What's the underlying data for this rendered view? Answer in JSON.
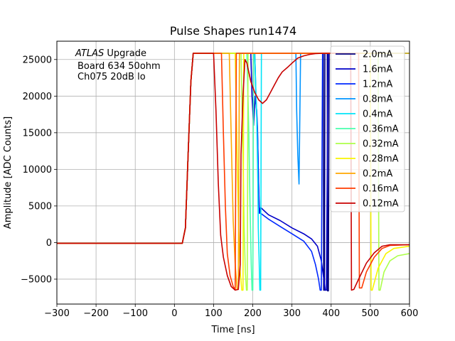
{
  "chart_data": {
    "type": "line",
    "title": "Pulse Shapes run1474",
    "xlabel": "Time [ns]",
    "ylabel": "Amplitude [ADC Counts]",
    "xlim": [
      -300,
      600
    ],
    "ylim": [
      -8400,
      27500
    ],
    "xticks": [
      -300,
      -200,
      -100,
      0,
      100,
      200,
      300,
      400,
      500,
      600
    ],
    "xtick_labels": [
      "−300",
      "−200",
      "−100",
      "0",
      "100",
      "200",
      "300",
      "400",
      "500",
      "600"
    ],
    "yticks": [
      -5000,
      0,
      5000,
      10000,
      15000,
      20000,
      25000
    ],
    "ytick_labels": [
      "−5000",
      "0",
      "5000",
      "10000",
      "15000",
      "20000",
      "25000"
    ],
    "grid": true,
    "legend_position": "top-right",
    "annotation": {
      "experiment": "ATLAS",
      "experiment_suffix": " Upgrade",
      "line2": "Board 634 50ohm",
      "line3": "Ch075 20dB lo"
    },
    "series": [
      {
        "name": "2.0mA",
        "color": "#00007f",
        "values": [
          [
            -300,
            -100
          ],
          [
            20,
            -100
          ],
          [
            28,
            2000
          ],
          [
            35,
            12000
          ],
          [
            42,
            22000
          ],
          [
            48,
            25850
          ],
          [
            380,
            25850
          ],
          [
            381,
            -6500
          ],
          [
            383,
            -6500
          ],
          [
            384,
            25850
          ],
          [
            390,
            25850
          ],
          [
            391,
            -6600
          ],
          [
            393,
            -6600
          ],
          [
            395,
            25850
          ],
          [
            600,
            25850
          ]
        ]
      },
      {
        "name": "1.6mA",
        "color": "#0000c8",
        "values": [
          [
            -300,
            -100
          ],
          [
            20,
            -100
          ],
          [
            28,
            2000
          ],
          [
            35,
            12000
          ],
          [
            42,
            22000
          ],
          [
            48,
            25850
          ],
          [
            195,
            25850
          ],
          [
            198,
            20000
          ],
          [
            202,
            16000
          ],
          [
            206,
            20000
          ],
          [
            210,
            18000
          ],
          [
            212,
            15500
          ],
          [
            214,
            10000
          ],
          [
            216,
            5000
          ],
          [
            218,
            4000
          ],
          [
            220,
            4800
          ],
          [
            240,
            3800
          ],
          [
            270,
            3000
          ],
          [
            300,
            2000
          ],
          [
            330,
            1200
          ],
          [
            350,
            500
          ],
          [
            365,
            -500
          ],
          [
            375,
            -2500
          ],
          [
            380,
            -4500
          ],
          [
            385,
            -6500
          ],
          [
            388,
            -6500
          ],
          [
            392,
            25850
          ],
          [
            600,
            25850
          ]
        ]
      },
      {
        "name": "1.2mA",
        "color": "#0028ff",
        "values": [
          [
            -300,
            -100
          ],
          [
            20,
            -100
          ],
          [
            28,
            2000
          ],
          [
            35,
            12000
          ],
          [
            42,
            22000
          ],
          [
            48,
            25850
          ],
          [
            205,
            25850
          ],
          [
            208,
            20000
          ],
          [
            212,
            15000
          ],
          [
            215,
            8000
          ],
          [
            217,
            4000
          ],
          [
            220,
            4000
          ],
          [
            240,
            3200
          ],
          [
            270,
            2200
          ],
          [
            300,
            1200
          ],
          [
            330,
            200
          ],
          [
            350,
            -1200
          ],
          [
            360,
            -3000
          ],
          [
            368,
            -5000
          ],
          [
            372,
            -6500
          ],
          [
            375,
            -6500
          ],
          [
            378,
            25850
          ],
          [
            600,
            25850
          ]
        ]
      },
      {
        "name": "0.8mA",
        "color": "#0094ff",
        "values": [
          [
            -300,
            -100
          ],
          [
            20,
            -100
          ],
          [
            28,
            2000
          ],
          [
            35,
            12000
          ],
          [
            42,
            22000
          ],
          [
            48,
            25850
          ],
          [
            310,
            25850
          ],
          [
            312,
            18000
          ],
          [
            315,
            12000
          ],
          [
            318,
            8000
          ],
          [
            322,
            25850
          ],
          [
            600,
            25850
          ]
        ]
      },
      {
        "name": "0.4mA",
        "color": "#00e4f8",
        "values": [
          [
            -300,
            -100
          ],
          [
            20,
            -100
          ],
          [
            28,
            2000
          ],
          [
            35,
            12000
          ],
          [
            42,
            22000
          ],
          [
            48,
            25850
          ],
          [
            205,
            25850
          ],
          [
            210,
            17000
          ],
          [
            213,
            8000
          ],
          [
            214,
            2000
          ],
          [
            216,
            -2000
          ],
          [
            218,
            -6500
          ],
          [
            220,
            -6500
          ],
          [
            222,
            25850
          ],
          [
            600,
            25850
          ]
        ]
      },
      {
        "name": "0.36mA",
        "color": "#4affad",
        "values": [
          [
            -300,
            -100
          ],
          [
            20,
            -100
          ],
          [
            28,
            2000
          ],
          [
            35,
            12000
          ],
          [
            42,
            22000
          ],
          [
            48,
            25850
          ],
          [
            185,
            25850
          ],
          [
            190,
            15000
          ],
          [
            193,
            5000
          ],
          [
            196,
            -3000
          ],
          [
            198,
            -6500
          ],
          [
            200,
            -6500
          ],
          [
            202,
            25850
          ],
          [
            600,
            25850
          ]
        ]
      },
      {
        "name": "0.32mA",
        "color": "#adff4a",
        "values": [
          [
            -300,
            -100
          ],
          [
            20,
            -100
          ],
          [
            28,
            2000
          ],
          [
            35,
            12000
          ],
          [
            42,
            22000
          ],
          [
            48,
            25850
          ],
          [
            170,
            25850
          ],
          [
            175,
            12000
          ],
          [
            178,
            2000
          ],
          [
            181,
            -4000
          ],
          [
            184,
            -6500
          ],
          [
            186,
            -6500
          ],
          [
            188,
            25850
          ],
          [
            520,
            25850
          ],
          [
            522,
            -6500
          ],
          [
            525,
            -6500
          ],
          [
            535,
            -4000
          ],
          [
            550,
            -2500
          ],
          [
            570,
            -1800
          ],
          [
            600,
            -1500
          ]
        ]
      },
      {
        "name": "0.28mA",
        "color": "#f8f500",
        "values": [
          [
            -300,
            -100
          ],
          [
            20,
            -100
          ],
          [
            28,
            2000
          ],
          [
            35,
            12000
          ],
          [
            42,
            22000
          ],
          [
            48,
            25850
          ],
          [
            155,
            25850
          ],
          [
            160,
            12000
          ],
          [
            164,
            2000
          ],
          [
            168,
            -4000
          ],
          [
            172,
            -6500
          ],
          [
            175,
            -6500
          ],
          [
            177,
            25850
          ],
          [
            500,
            25850
          ],
          [
            502,
            -6500
          ],
          [
            505,
            -6500
          ],
          [
            520,
            -3500
          ],
          [
            540,
            -1500
          ],
          [
            560,
            -800
          ],
          [
            600,
            -500
          ]
        ]
      },
      {
        "name": "0.2mA",
        "color": "#ffa700",
        "values": [
          [
            -300,
            -100
          ],
          [
            20,
            -100
          ],
          [
            28,
            2000
          ],
          [
            35,
            12000
          ],
          [
            42,
            22000
          ],
          [
            48,
            25850
          ],
          [
            140,
            25850
          ],
          [
            146,
            12000
          ],
          [
            150,
            3000
          ],
          [
            155,
            -3000
          ],
          [
            160,
            -6300
          ],
          [
            163,
            -6400
          ],
          [
            166,
            25850
          ],
          [
            600,
            25850
          ]
        ]
      },
      {
        "name": "0.16mA",
        "color": "#ff3b00",
        "values": [
          [
            -300,
            -100
          ],
          [
            20,
            -100
          ],
          [
            28,
            2000
          ],
          [
            35,
            12000
          ],
          [
            42,
            22000
          ],
          [
            48,
            25850
          ],
          [
            120,
            25850
          ],
          [
            125,
            15000
          ],
          [
            130,
            5000
          ],
          [
            135,
            -1500
          ],
          [
            142,
            -4500
          ],
          [
            150,
            -6000
          ],
          [
            155,
            -6400
          ],
          [
            158,
            25850
          ],
          [
            470,
            25850
          ],
          [
            472,
            -6200
          ],
          [
            478,
            -6200
          ],
          [
            490,
            -4000
          ],
          [
            510,
            -2000
          ],
          [
            530,
            -800
          ],
          [
            550,
            -400
          ],
          [
            600,
            -300
          ]
        ]
      },
      {
        "name": "0.12mA",
        "color": "#c80000",
        "values": [
          [
            -300,
            -100
          ],
          [
            20,
            -100
          ],
          [
            28,
            2000
          ],
          [
            35,
            12000
          ],
          [
            42,
            22000
          ],
          [
            48,
            25850
          ],
          [
            100,
            25850
          ],
          [
            106,
            18000
          ],
          [
            112,
            8000
          ],
          [
            118,
            1000
          ],
          [
            125,
            -2000
          ],
          [
            135,
            -4500
          ],
          [
            145,
            -6000
          ],
          [
            155,
            -6500
          ],
          [
            163,
            -6400
          ],
          [
            168,
            -3000
          ],
          [
            170,
            12000
          ],
          [
            175,
            20000
          ],
          [
            180,
            25000
          ],
          [
            185,
            24500
          ],
          [
            195,
            22000
          ],
          [
            205,
            20500
          ],
          [
            215,
            19500
          ],
          [
            225,
            19000
          ],
          [
            235,
            19500
          ],
          [
            245,
            20500
          ],
          [
            255,
            21500
          ],
          [
            265,
            22500
          ],
          [
            275,
            23300
          ],
          [
            290,
            24000
          ],
          [
            300,
            24500
          ],
          [
            315,
            25200
          ],
          [
            330,
            25500
          ],
          [
            345,
            25700
          ],
          [
            360,
            25800
          ],
          [
            380,
            25850
          ],
          [
            450,
            25850
          ],
          [
            452,
            -6500
          ],
          [
            458,
            -6400
          ],
          [
            470,
            -5000
          ],
          [
            490,
            -2800
          ],
          [
            510,
            -1400
          ],
          [
            530,
            -500
          ],
          [
            550,
            -300
          ],
          [
            600,
            -300
          ]
        ]
      }
    ]
  }
}
